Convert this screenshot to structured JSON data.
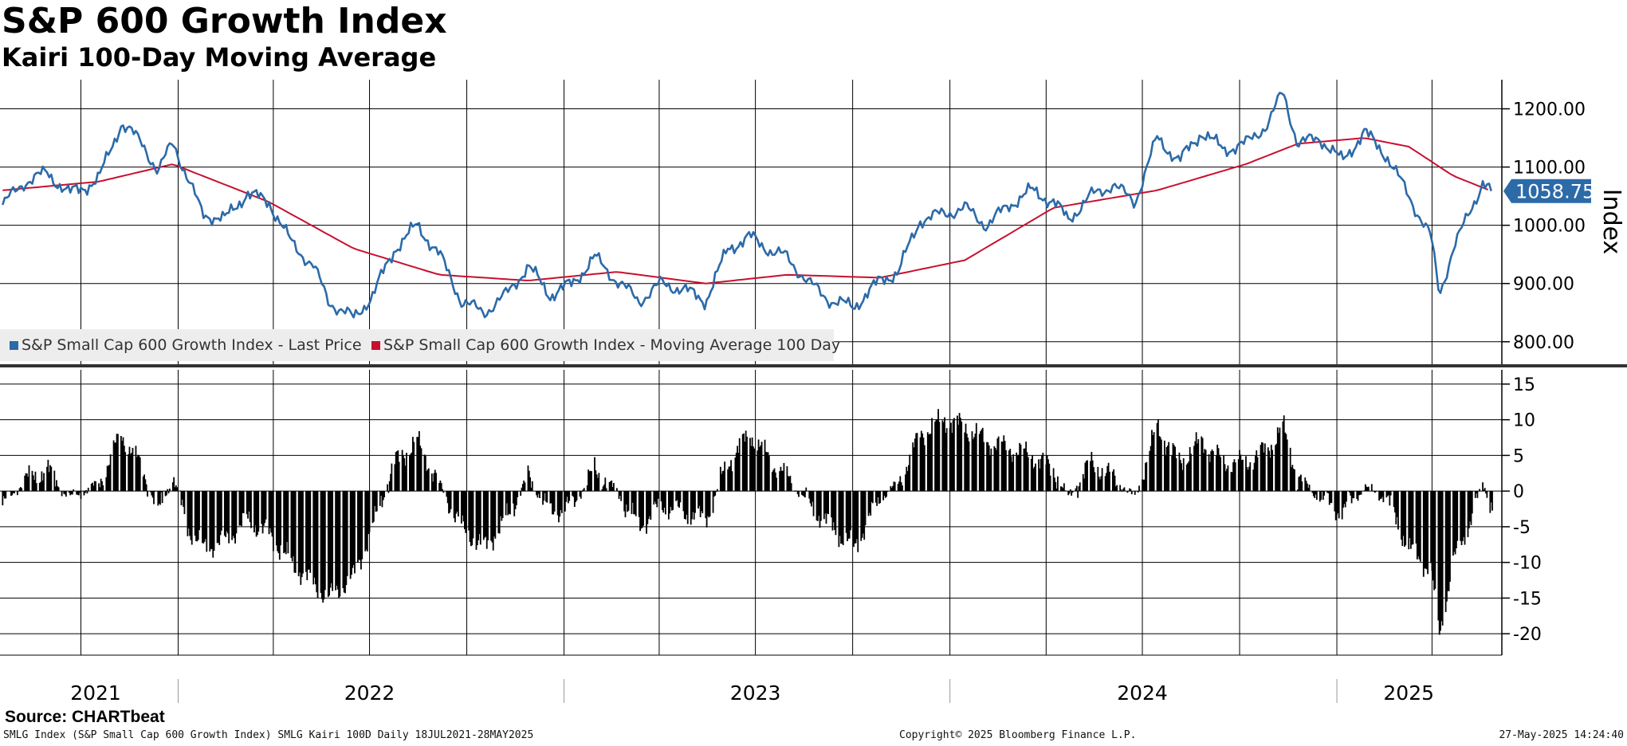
{
  "title": "S&P 600 Growth Index",
  "subtitle": "Kairi 100-Day Moving Average",
  "source": "Source: CHARTbeat",
  "footer": {
    "left": "SMLG Index (S&P Small Cap 600 Growth Index) SMLG Kairi 100D  Daily 18JUL2021-28MAY2025",
    "center": "Copyright© 2025 Bloomberg Finance L.P.",
    "right": "27-May-2025 14:24:40"
  },
  "colors": {
    "price": "#2c6aa8",
    "ma": "#c8102e",
    "kairi": "#000000",
    "tag_bg": "#2c6aa8"
  },
  "chart_data": [
    {
      "type": "line",
      "ylabel": "Index",
      "ylim": [
        760,
        1250
      ],
      "yticks": [
        800,
        900,
        1000,
        1100,
        1200
      ],
      "ytick_labels": [
        "800.00",
        "900.00",
        "1000.00",
        "1100.00",
        "1200.00"
      ],
      "x_labels": [
        "2021",
        "2022",
        "2023",
        "2024",
        "2025"
      ],
      "x_range": [
        "2021-07-18",
        "2025-05-28"
      ],
      "last_value_label": "1058.75",
      "legend": [
        {
          "label": "S&P Small Cap 600 Growth Index - Last Price",
          "color": "#2c6aa8"
        },
        {
          "label": "S&P Small Cap 600 Growth Index - Moving Average 100 Day",
          "color": "#c8102e"
        }
      ],
      "series": [
        {
          "name": "S&P Small Cap 600 Growth Index - Last Price",
          "x": [
            "2021-07-19",
            "2021-08-09",
            "2021-08-30",
            "2021-09-20",
            "2021-10-04",
            "2021-10-18",
            "2021-11-08",
            "2021-11-29",
            "2021-12-13",
            "2021-12-27",
            "2022-01-10",
            "2022-01-24",
            "2022-02-14",
            "2022-03-07",
            "2022-03-28",
            "2022-04-18",
            "2022-05-09",
            "2022-05-23",
            "2022-06-16",
            "2022-07-04",
            "2022-07-25",
            "2022-08-15",
            "2022-09-05",
            "2022-09-26",
            "2022-10-17",
            "2022-11-07",
            "2022-11-28",
            "2022-12-19",
            "2023-01-09",
            "2023-01-30",
            "2023-02-20",
            "2023-03-13",
            "2023-04-03",
            "2023-04-24",
            "2023-05-15",
            "2023-06-05",
            "2023-06-26",
            "2023-07-17",
            "2023-07-31",
            "2023-08-21",
            "2023-09-11",
            "2023-10-02",
            "2023-10-27",
            "2023-11-13",
            "2023-12-04",
            "2023-12-27",
            "2024-01-15",
            "2024-02-05",
            "2024-02-26",
            "2024-03-18",
            "2024-04-08",
            "2024-04-22",
            "2024-05-13",
            "2024-06-03",
            "2024-06-24",
            "2024-07-15",
            "2024-08-05",
            "2024-08-26",
            "2024-09-16",
            "2024-10-07",
            "2024-10-28",
            "2024-11-11",
            "2024-11-25",
            "2024-12-16",
            "2025-01-06",
            "2025-01-27",
            "2025-02-17",
            "2025-03-10",
            "2025-03-31",
            "2025-04-08",
            "2025-04-21",
            "2025-05-05",
            "2025-05-19",
            "2025-05-28"
          ],
          "values": [
            1035,
            1075,
            1090,
            1055,
            1065,
            1080,
            1175,
            1140,
            1090,
            1145,
            1080,
            1020,
            1010,
            1055,
            1040,
            970,
            930,
            870,
            840,
            880,
            960,
            1000,
            950,
            870,
            850,
            880,
            930,
            880,
            900,
            945,
            905,
            870,
            900,
            890,
            870,
            960,
            980,
            955,
            945,
            900,
            870,
            860,
            905,
            920,
            1010,
            1020,
            1030,
            1000,
            1035,
            1060,
            1040,
            1010,
            1050,
            1070,
            1040,
            1150,
            1110,
            1160,
            1130,
            1140,
            1175,
            1230,
            1140,
            1150,
            1110,
            1160,
            1120,
            1050,
            980,
            880,
            960,
            1015,
            1075,
            1058.75
          ]
        },
        {
          "name": "S&P Small Cap 600 Growth Index - Moving Average 100 Day",
          "x": [
            "2021-07-19",
            "2021-10-18",
            "2021-12-27",
            "2022-03-28",
            "2022-06-16",
            "2022-09-05",
            "2022-11-28",
            "2023-02-20",
            "2023-05-15",
            "2023-07-31",
            "2023-10-27",
            "2024-01-15",
            "2024-04-08",
            "2024-07-15",
            "2024-10-07",
            "2024-11-25",
            "2025-01-27",
            "2025-03-10",
            "2025-04-21",
            "2025-05-28"
          ],
          "values": [
            1060,
            1075,
            1105,
            1040,
            960,
            915,
            905,
            920,
            900,
            915,
            910,
            940,
            1030,
            1060,
            1105,
            1140,
            1150,
            1135,
            1085,
            1058
          ]
        }
      ]
    },
    {
      "type": "bar",
      "name": "SMLG Kairi 100D",
      "ylim": [
        -23,
        17
      ],
      "yticks": [
        -20,
        -15,
        -10,
        -5,
        0,
        5,
        10,
        15
      ],
      "ytick_labels": [
        "-20",
        "-15",
        "-10",
        "-5",
        "0",
        "5",
        "10",
        "15"
      ],
      "x": [
        "2021-07-19",
        "2021-08-09",
        "2021-08-30",
        "2021-09-20",
        "2021-10-04",
        "2021-10-18",
        "2021-11-08",
        "2021-11-29",
        "2021-12-13",
        "2021-12-27",
        "2022-01-10",
        "2022-01-24",
        "2022-02-14",
        "2022-03-07",
        "2022-03-28",
        "2022-04-18",
        "2022-05-09",
        "2022-05-23",
        "2022-06-16",
        "2022-07-04",
        "2022-07-25",
        "2022-08-15",
        "2022-09-05",
        "2022-09-26",
        "2022-10-17",
        "2022-11-07",
        "2022-11-28",
        "2022-12-19",
        "2023-01-09",
        "2023-01-30",
        "2023-02-20",
        "2023-03-13",
        "2023-04-03",
        "2023-04-24",
        "2023-05-15",
        "2023-06-05",
        "2023-06-26",
        "2023-07-17",
        "2023-07-31",
        "2023-08-21",
        "2023-09-11",
        "2023-10-02",
        "2023-10-27",
        "2023-11-13",
        "2023-12-04",
        "2023-12-27",
        "2024-01-15",
        "2024-02-05",
        "2024-02-26",
        "2024-03-18",
        "2024-04-08",
        "2024-04-22",
        "2024-05-13",
        "2024-06-03",
        "2024-06-24",
        "2024-07-15",
        "2024-08-05",
        "2024-08-26",
        "2024-09-16",
        "2024-10-07",
        "2024-10-28",
        "2024-11-11",
        "2024-11-25",
        "2024-12-16",
        "2025-01-06",
        "2025-01-27",
        "2025-02-17",
        "2025-03-10",
        "2025-03-31",
        "2025-04-08",
        "2025-04-21",
        "2025-05-05",
        "2025-05-19",
        "2025-05-28"
      ],
      "values": [
        -2,
        1.5,
        3,
        -1,
        0,
        1,
        8,
        3,
        -3,
        2,
        -5,
        -8,
        -7,
        -4,
        -6,
        -10,
        -13,
        -15,
        -12,
        -5,
        4,
        7,
        1,
        -5,
        -8,
        -4,
        2,
        -3,
        -2,
        3,
        0,
        -5,
        -2,
        -3,
        -4,
        4,
        8,
        4,
        2,
        -2,
        -5,
        -8,
        -1,
        1,
        8,
        10,
        9,
        7,
        6,
        5,
        3,
        -1,
        4,
        2,
        -1,
        9,
        4,
        7,
        4,
        4,
        6,
        9,
        2,
        -1,
        -3,
        0.5,
        -1,
        -8,
        -11,
        -20,
        -10,
        -5,
        1,
        -2
      ]
    }
  ]
}
